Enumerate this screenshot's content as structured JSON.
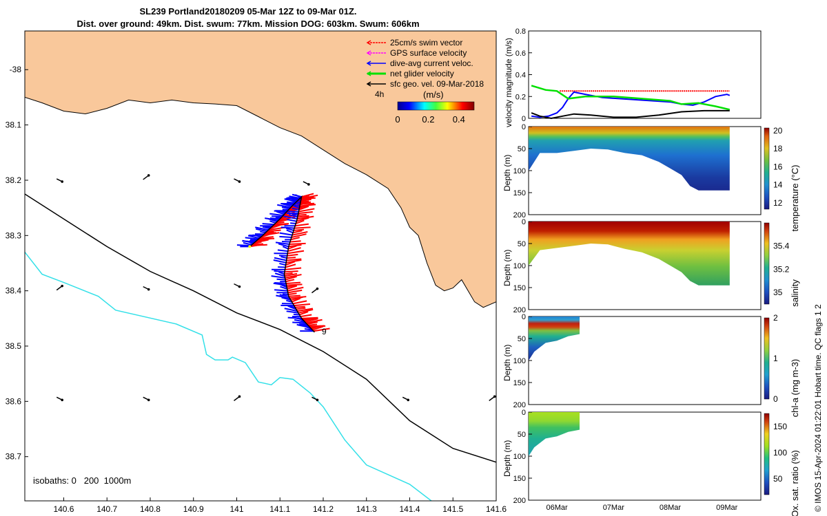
{
  "header": {
    "title_line1": "SL239 Portland20180209 05-Mar 12Z to 09-Mar 01Z.",
    "title_line2": "Dist. over ground: 49km. Dist. swum: 77km. Mission DOG: 603km. Swum: 606km"
  },
  "footer_note": "© IMOS 15-Apr-2024 01:22:01 Hobart time. QC flags 1 2",
  "colors": {
    "land": "#f9c89b",
    "swim_vector": "#ff0000",
    "dive_avg_current": "#0000ff",
    "net_velocity": "#00e000",
    "surface_geo": "#000000",
    "gps_surface": "#ff00ff",
    "isobath_200": "#000000",
    "isobath_1000": "#33e0e8"
  },
  "chart_data": [
    {
      "type": "map",
      "name": "track_map",
      "x_ticks": [
        "140.6",
        "140.7",
        "140.8",
        "140.9",
        "141",
        "141.1",
        "141.2",
        "141.3",
        "141.4",
        "141.5",
        "141.6"
      ],
      "y_ticks": [
        "-38",
        "38.1",
        "38.2",
        "38.3",
        "38.4",
        "38.5",
        "38.6",
        "38.7"
      ],
      "xlim": [
        140.51,
        141.6
      ],
      "ylim": [
        -38.78,
        -37.93
      ],
      "legend": {
        "placement": "top-right",
        "entries": [
          {
            "label": "25cm/s swim vector",
            "color": "#ff0000"
          },
          {
            "label": "GPS surface velocity",
            "color": "#ff00ff"
          },
          {
            "label": "dive-avg current veloc.",
            "color": "#0000ff"
          },
          {
            "label": "net glider velocity",
            "color": "#00e000"
          },
          {
            "label": "sfc geo. vel. 09-Mar-2018",
            "color": "#000000"
          }
        ],
        "interval_label": "4h"
      },
      "colorbar": {
        "label": "(m/s)",
        "ticks": [
          "0",
          "0.2",
          "0.4"
        ],
        "range": [
          0,
          0.5
        ]
      },
      "isobath_label": "isobaths: 0   200  1000m",
      "end_label": "9",
      "coastline": [
        [
          140.51,
          -37.93
        ],
        [
          140.51,
          -38.05
        ],
        [
          140.55,
          -38.06
        ],
        [
          140.6,
          -38.075
        ],
        [
          140.65,
          -38.08
        ],
        [
          140.7,
          -38.07
        ],
        [
          140.75,
          -38.055
        ],
        [
          140.8,
          -38.06
        ],
        [
          140.85,
          -38.055
        ],
        [
          140.9,
          -38.06
        ],
        [
          140.95,
          -38.062
        ],
        [
          141.0,
          -38.065
        ],
        [
          141.05,
          -38.085
        ],
        [
          141.1,
          -38.105
        ],
        [
          141.15,
          -38.12
        ],
        [
          141.2,
          -38.145
        ],
        [
          141.25,
          -38.17
        ],
        [
          141.3,
          -38.19
        ],
        [
          141.35,
          -38.215
        ],
        [
          141.38,
          -38.25
        ],
        [
          141.4,
          -38.285
        ],
        [
          141.42,
          -38.3
        ],
        [
          141.44,
          -38.35
        ],
        [
          141.46,
          -38.39
        ],
        [
          141.48,
          -38.4
        ],
        [
          141.5,
          -38.395
        ],
        [
          141.52,
          -38.38
        ],
        [
          141.55,
          -38.42
        ],
        [
          141.57,
          -38.43
        ],
        [
          141.6,
          -38.42
        ],
        [
          141.6,
          -37.93
        ]
      ],
      "isobath_200": [
        [
          140.51,
          -38.225
        ],
        [
          140.6,
          -38.27
        ],
        [
          140.7,
          -38.32
        ],
        [
          140.8,
          -38.365
        ],
        [
          140.9,
          -38.4
        ],
        [
          141.0,
          -38.44
        ],
        [
          141.1,
          -38.47
        ],
        [
          141.2,
          -38.51
        ],
        [
          141.3,
          -38.56
        ],
        [
          141.4,
          -38.635
        ],
        [
          141.5,
          -38.685
        ],
        [
          141.6,
          -38.71
        ]
      ],
      "isobath_1000": [
        [
          140.51,
          -38.33
        ],
        [
          140.55,
          -38.37
        ],
        [
          140.6,
          -38.385
        ],
        [
          140.68,
          -38.41
        ],
        [
          140.72,
          -38.435
        ],
        [
          140.86,
          -38.46
        ],
        [
          140.92,
          -38.48
        ],
        [
          140.93,
          -38.515
        ],
        [
          140.95,
          -38.525
        ],
        [
          140.98,
          -38.525
        ],
        [
          140.99,
          -38.52
        ],
        [
          141.02,
          -38.53
        ],
        [
          141.05,
          -38.565
        ],
        [
          141.08,
          -38.57
        ],
        [
          141.1,
          -38.557
        ],
        [
          141.13,
          -38.56
        ],
        [
          141.17,
          -38.585
        ],
        [
          141.2,
          -38.61
        ],
        [
          141.25,
          -38.67
        ],
        [
          141.3,
          -38.715
        ],
        [
          141.4,
          -38.75
        ],
        [
          141.45,
          -38.78
        ]
      ],
      "glider_track": [
        [
          141.03,
          -38.32
        ],
        [
          141.06,
          -38.3
        ],
        [
          141.1,
          -38.27
        ],
        [
          141.13,
          -38.245
        ],
        [
          141.15,
          -38.23
        ],
        [
          141.14,
          -38.27
        ],
        [
          141.12,
          -38.32
        ],
        [
          141.11,
          -38.37
        ],
        [
          141.12,
          -38.41
        ],
        [
          141.15,
          -38.45
        ],
        [
          141.18,
          -38.475
        ]
      ],
      "surface_vectors": [
        [
          140.59,
          -38.2
        ],
        [
          140.79,
          -38.195
        ],
        [
          141.0,
          -38.2
        ],
        [
          141.16,
          -38.205
        ],
        [
          140.59,
          -38.395
        ],
        [
          140.79,
          -38.395
        ],
        [
          141.0,
          -38.39
        ],
        [
          141.18,
          -38.4
        ],
        [
          140.59,
          -38.595
        ],
        [
          140.79,
          -38.595
        ],
        [
          141.0,
          -38.595
        ],
        [
          141.18,
          -38.595
        ],
        [
          141.39,
          -38.595
        ],
        [
          141.59,
          -38.595
        ]
      ]
    },
    {
      "type": "line",
      "name": "velocity_magnitude",
      "ylabel": "velocity magnitude (m/s)",
      "ylim": [
        0,
        0.8
      ],
      "y_ticks": [
        "0",
        "0.2",
        "0.4",
        "0.6",
        "0.8"
      ],
      "xlim": [
        5.5,
        9.6
      ],
      "series": [
        {
          "color": "#ff0000",
          "x": [
            6.05,
            9.05
          ],
          "values": [
            0.25,
            0.25
          ]
        },
        {
          "color": "#0000ff",
          "x": [
            5.55,
            5.7,
            5.85,
            6.0,
            6.1,
            6.2,
            6.3,
            6.5,
            6.8,
            7.1,
            7.4,
            7.7,
            8.0,
            8.2,
            8.4,
            8.6,
            8.8,
            9.0,
            9.05
          ],
          "values": [
            0.02,
            0.01,
            0.02,
            0.05,
            0.1,
            0.18,
            0.24,
            0.22,
            0.19,
            0.18,
            0.17,
            0.16,
            0.15,
            0.13,
            0.12,
            0.15,
            0.2,
            0.22,
            0.21
          ]
        },
        {
          "color": "#00e000",
          "x": [
            5.55,
            5.8,
            6.0,
            6.2,
            6.5,
            7.0,
            7.5,
            8.0,
            8.2,
            8.5,
            8.8,
            9.05
          ],
          "values": [
            0.3,
            0.26,
            0.25,
            0.18,
            0.2,
            0.2,
            0.18,
            0.16,
            0.13,
            0.14,
            0.11,
            0.08
          ]
        },
        {
          "color": "#000000",
          "x": [
            5.55,
            5.7,
            5.9,
            6.1,
            6.3,
            6.6,
            7.0,
            7.4,
            7.8,
            8.2,
            8.6,
            9.05
          ],
          "values": [
            0.05,
            0.02,
            0.0,
            0.02,
            0.04,
            0.03,
            0.01,
            0.01,
            0.03,
            0.06,
            0.07,
            0.07
          ]
        }
      ]
    },
    {
      "type": "heatmap",
      "name": "temperature_section",
      "ylabel": "Depth (m)",
      "ylim": [
        200,
        0
      ],
      "y_ticks": [
        "0",
        "50",
        "100",
        "150",
        "200"
      ],
      "colorbar_label": "temperature (°C)",
      "colorbar_ticks": [
        "12",
        "14",
        "16",
        "18",
        "20"
      ],
      "colorbar_range": [
        11.3,
        20.3
      ],
      "x_start": 5.5,
      "x_end": 9.05,
      "bottom_depth": [
        [
          5.5,
          100
        ],
        [
          5.7,
          60
        ],
        [
          6.0,
          60
        ],
        [
          6.3,
          55
        ],
        [
          6.6,
          50
        ],
        [
          6.9,
          52
        ],
        [
          7.2,
          60
        ],
        [
          7.5,
          65
        ],
        [
          7.8,
          80
        ],
        [
          8.0,
          95
        ],
        [
          8.2,
          110
        ],
        [
          8.35,
          135
        ],
        [
          8.5,
          145
        ],
        [
          9.05,
          145
        ]
      ]
    },
    {
      "type": "heatmap",
      "name": "salinity_section",
      "ylabel": "Depth (m)",
      "ylim": [
        200,
        0
      ],
      "y_ticks": [
        "0",
        "50",
        "100",
        "150",
        "200"
      ],
      "colorbar_label": "salinity",
      "colorbar_ticks": [
        "35",
        "35.2",
        "35.4"
      ],
      "colorbar_range": [
        34.9,
        35.6
      ],
      "x_start": 5.5,
      "x_end": 9.05,
      "bottom_depth": [
        [
          5.5,
          100
        ],
        [
          5.7,
          65
        ],
        [
          6.0,
          60
        ],
        [
          6.3,
          55
        ],
        [
          6.6,
          50
        ],
        [
          6.9,
          52
        ],
        [
          7.2,
          62
        ],
        [
          7.5,
          70
        ],
        [
          7.8,
          85
        ],
        [
          8.0,
          100
        ],
        [
          8.2,
          115
        ],
        [
          8.35,
          135
        ],
        [
          8.5,
          145
        ],
        [
          9.05,
          145
        ]
      ]
    },
    {
      "type": "heatmap",
      "name": "chla_section",
      "ylabel": "Depth (m)",
      "ylim": [
        200,
        0
      ],
      "y_ticks": [
        "0",
        "50",
        "100",
        "150",
        "200"
      ],
      "colorbar_label": "chl-a (mg m-3)",
      "colorbar_ticks": [
        "0",
        "1",
        "2"
      ],
      "colorbar_range": [
        0,
        2
      ],
      "x_start": 5.5,
      "x_end": 6.4,
      "bottom_depth": [
        [
          5.5,
          100
        ],
        [
          5.6,
          80
        ],
        [
          5.8,
          60
        ],
        [
          6.0,
          55
        ],
        [
          6.2,
          45
        ],
        [
          6.4,
          40
        ]
      ]
    },
    {
      "type": "heatmap",
      "name": "oxygen_section",
      "ylabel": "Depth (m)",
      "ylim": [
        200,
        0
      ],
      "y_ticks": [
        "0",
        "50",
        "100",
        "150",
        "200"
      ],
      "colorbar_label": "Ox. sat. ratio (%)",
      "colorbar_ticks": [
        "50",
        "100",
        "150"
      ],
      "colorbar_range": [
        20,
        175
      ],
      "x_start": 5.5,
      "x_end": 6.4,
      "bottom_depth": [
        [
          5.5,
          100
        ],
        [
          5.6,
          80
        ],
        [
          5.8,
          60
        ],
        [
          6.0,
          55
        ],
        [
          6.2,
          45
        ],
        [
          6.4,
          40
        ]
      ],
      "x_ticks": [
        "06Mar",
        "07Mar",
        "08Mar",
        "09Mar"
      ]
    }
  ]
}
